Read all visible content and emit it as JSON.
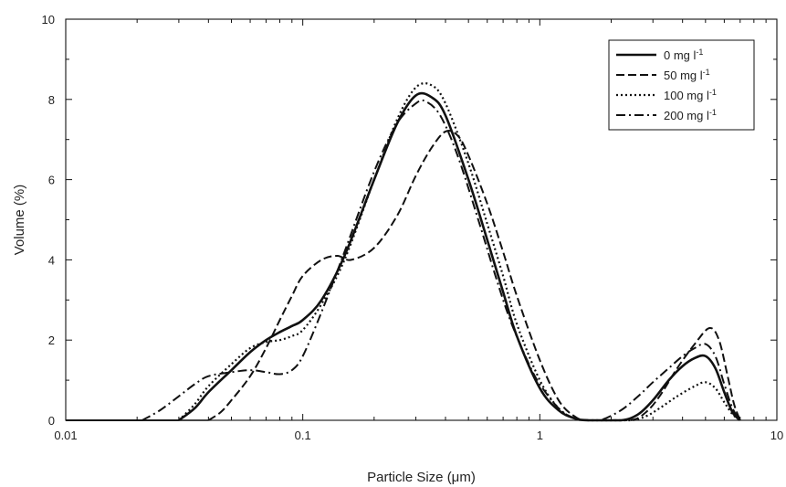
{
  "chart_data": {
    "type": "line",
    "xlabel": "Particle Size (μm)",
    "ylabel": "Volume (%)",
    "xscale": "log",
    "xlim": [
      0.01,
      10
    ],
    "ylim": [
      0,
      10
    ],
    "x_ticks": [
      0.01,
      0.1,
      1,
      10
    ],
    "x_tick_labels": [
      "0.01",
      "0.1",
      "1",
      "10"
    ],
    "y_ticks": [
      0,
      2,
      4,
      6,
      8,
      10
    ],
    "y_tick_labels": [
      "0",
      "2",
      "4",
      "6",
      "8",
      "10"
    ],
    "grid": false,
    "legend_position": "top-right",
    "series": [
      {
        "name": "0 mg l",
        "superscript": "-1",
        "dash": "solid",
        "points": [
          [
            0.03,
            0
          ],
          [
            0.035,
            0.3
          ],
          [
            0.04,
            0.7
          ],
          [
            0.05,
            1.25
          ],
          [
            0.06,
            1.7
          ],
          [
            0.07,
            2.0
          ],
          [
            0.08,
            2.2
          ],
          [
            0.09,
            2.35
          ],
          [
            0.1,
            2.5
          ],
          [
            0.12,
            3.0
          ],
          [
            0.15,
            4.1
          ],
          [
            0.2,
            6.0
          ],
          [
            0.25,
            7.4
          ],
          [
            0.3,
            8.1
          ],
          [
            0.35,
            8.05
          ],
          [
            0.4,
            7.6
          ],
          [
            0.5,
            6.0
          ],
          [
            0.6,
            4.5
          ],
          [
            0.7,
            3.2
          ],
          [
            0.8,
            2.1
          ],
          [
            1.0,
            0.8
          ],
          [
            1.2,
            0.25
          ],
          [
            1.4,
            0.05
          ],
          [
            1.6,
            0
          ],
          [
            2.2,
            0
          ],
          [
            2.6,
            0.15
          ],
          [
            3.0,
            0.5
          ],
          [
            3.5,
            1.0
          ],
          [
            4.0,
            1.35
          ],
          [
            4.5,
            1.55
          ],
          [
            5.0,
            1.6
          ],
          [
            5.5,
            1.3
          ],
          [
            6.0,
            0.7
          ],
          [
            6.5,
            0.2
          ],
          [
            7.0,
            0
          ]
        ]
      },
      {
        "name": "50 mg l",
        "superscript": "-1",
        "dash": "dashed",
        "points": [
          [
            0.04,
            0
          ],
          [
            0.045,
            0.2
          ],
          [
            0.05,
            0.5
          ],
          [
            0.06,
            1.1
          ],
          [
            0.07,
            1.8
          ],
          [
            0.08,
            2.5
          ],
          [
            0.09,
            3.1
          ],
          [
            0.1,
            3.6
          ],
          [
            0.12,
            4.0
          ],
          [
            0.14,
            4.1
          ],
          [
            0.16,
            4.0
          ],
          [
            0.2,
            4.3
          ],
          [
            0.25,
            5.1
          ],
          [
            0.3,
            6.1
          ],
          [
            0.35,
            6.8
          ],
          [
            0.4,
            7.2
          ],
          [
            0.45,
            7.1
          ],
          [
            0.5,
            6.6
          ],
          [
            0.6,
            5.4
          ],
          [
            0.7,
            4.2
          ],
          [
            0.8,
            3.1
          ],
          [
            1.0,
            1.5
          ],
          [
            1.2,
            0.5
          ],
          [
            1.4,
            0.1
          ],
          [
            1.6,
            0
          ],
          [
            2.4,
            0
          ],
          [
            2.8,
            0.2
          ],
          [
            3.2,
            0.6
          ],
          [
            3.8,
            1.3
          ],
          [
            4.5,
            1.9
          ],
          [
            5.2,
            2.3
          ],
          [
            5.7,
            2.0
          ],
          [
            6.2,
            1.1
          ],
          [
            6.6,
            0.4
          ],
          [
            7.0,
            0
          ]
        ]
      },
      {
        "name": "100 mg l",
        "superscript": "-1",
        "dash": "dotted",
        "points": [
          [
            0.03,
            0
          ],
          [
            0.035,
            0.4
          ],
          [
            0.04,
            0.85
          ],
          [
            0.05,
            1.4
          ],
          [
            0.06,
            1.8
          ],
          [
            0.07,
            1.95
          ],
          [
            0.08,
            2.0
          ],
          [
            0.09,
            2.1
          ],
          [
            0.1,
            2.25
          ],
          [
            0.12,
            2.9
          ],
          [
            0.15,
            4.0
          ],
          [
            0.2,
            6.0
          ],
          [
            0.25,
            7.5
          ],
          [
            0.3,
            8.3
          ],
          [
            0.35,
            8.35
          ],
          [
            0.4,
            7.9
          ],
          [
            0.5,
            6.4
          ],
          [
            0.6,
            4.9
          ],
          [
            0.7,
            3.6
          ],
          [
            0.8,
            2.4
          ],
          [
            1.0,
            1.0
          ],
          [
            1.2,
            0.3
          ],
          [
            1.4,
            0.05
          ],
          [
            1.6,
            0
          ],
          [
            2.4,
            0
          ],
          [
            2.8,
            0.1
          ],
          [
            3.2,
            0.3
          ],
          [
            3.8,
            0.6
          ],
          [
            4.5,
            0.85
          ],
          [
            5.0,
            0.95
          ],
          [
            5.5,
            0.8
          ],
          [
            6.0,
            0.45
          ],
          [
            6.5,
            0.15
          ],
          [
            7.0,
            0
          ]
        ]
      },
      {
        "name": "200 mg l",
        "superscript": "-1",
        "dash": "dashdot",
        "points": [
          [
            0.021,
            0
          ],
          [
            0.025,
            0.25
          ],
          [
            0.03,
            0.6
          ],
          [
            0.035,
            0.9
          ],
          [
            0.04,
            1.1
          ],
          [
            0.05,
            1.2
          ],
          [
            0.06,
            1.25
          ],
          [
            0.07,
            1.2
          ],
          [
            0.08,
            1.15
          ],
          [
            0.09,
            1.25
          ],
          [
            0.1,
            1.6
          ],
          [
            0.12,
            2.7
          ],
          [
            0.15,
            4.2
          ],
          [
            0.2,
            6.2
          ],
          [
            0.25,
            7.4
          ],
          [
            0.3,
            7.9
          ],
          [
            0.33,
            7.95
          ],
          [
            0.38,
            7.6
          ],
          [
            0.45,
            6.6
          ],
          [
            0.55,
            5.0
          ],
          [
            0.65,
            3.6
          ],
          [
            0.75,
            2.5
          ],
          [
            0.9,
            1.4
          ],
          [
            1.0,
            0.9
          ],
          [
            1.2,
            0.3
          ],
          [
            1.4,
            0.05
          ],
          [
            1.6,
            0
          ],
          [
            1.8,
            0
          ],
          [
            2.2,
            0.25
          ],
          [
            2.6,
            0.6
          ],
          [
            3.0,
            0.95
          ],
          [
            3.5,
            1.3
          ],
          [
            4.0,
            1.6
          ],
          [
            4.5,
            1.8
          ],
          [
            5.0,
            1.9
          ],
          [
            5.5,
            1.6
          ],
          [
            6.0,
            0.9
          ],
          [
            6.5,
            0.3
          ],
          [
            7.0,
            0
          ]
        ]
      }
    ]
  }
}
